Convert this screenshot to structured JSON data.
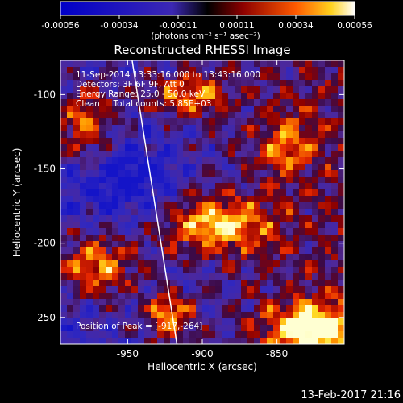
{
  "colorbar": {
    "ticks": [
      "-0.00056",
      "-0.00034",
      "-0.00011",
      "0.00011",
      "0.00034",
      "0.00056"
    ],
    "units": "(photons cm⁻² s⁻¹ asec⁻²)"
  },
  "chart_data": {
    "type": "heatmap",
    "title": "Reconstructed RHESSI Image",
    "xlabel": "Heliocentric X (arcsec)",
    "ylabel": "Heliocentric Y (arcsec)",
    "xlim": [
      -995,
      -805
    ],
    "ylim": [
      -268,
      -77
    ],
    "x_ticks": [
      -950,
      -900,
      -850
    ],
    "y_ticks": [
      -100,
      -150,
      -200,
      -250
    ],
    "value_range": [
      -0.00056,
      0.00056
    ],
    "annotations": [
      "11-Sep-2014 13:33:16.000 to 13:43:16.000",
      "Detectors: 3F 6F 9F, Att 0",
      "Energy Range: 25.0 - 50.0 keV",
      "Clean     Total counts: 5.85E+03"
    ],
    "peak_label": "Position of Peak = [-917,-264]",
    "limb_line": [
      [
        -947,
        -77
      ],
      [
        -917,
        -268
      ]
    ]
  },
  "footer": {
    "date": "13-Feb-2017 21:16"
  },
  "colors": {
    "background": "#000000",
    "text": "#ffffff"
  }
}
